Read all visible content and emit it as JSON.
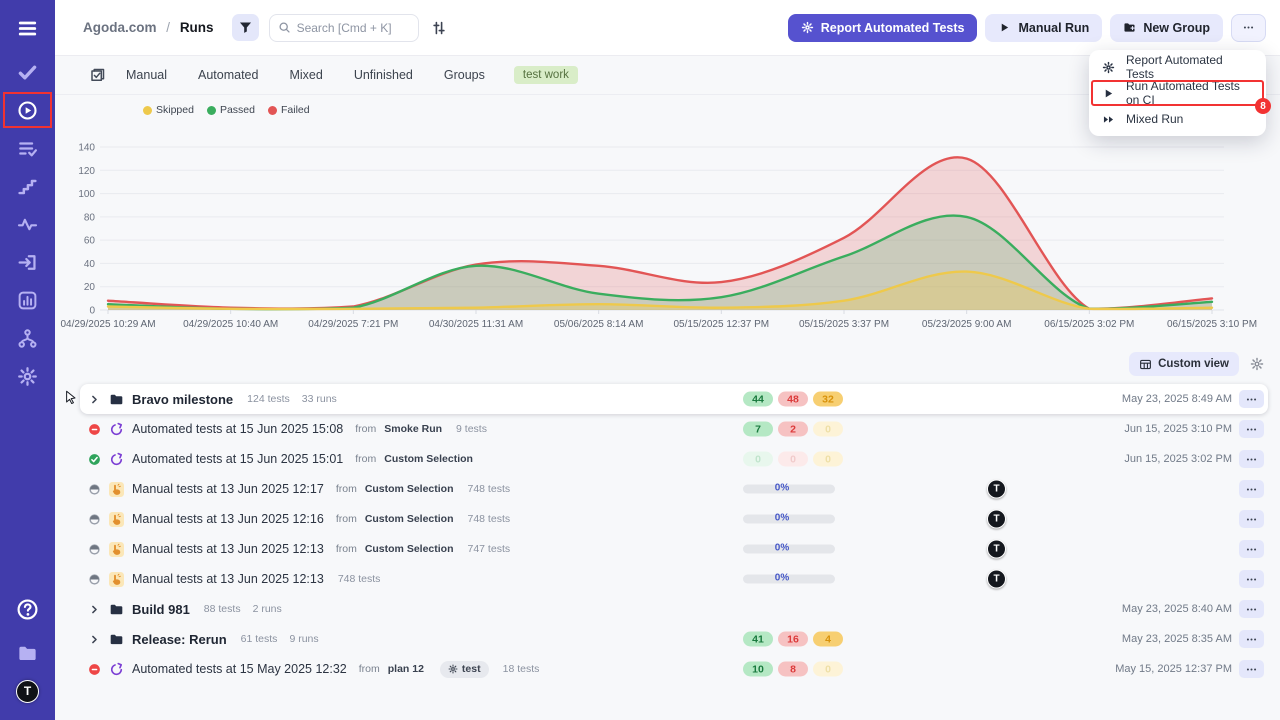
{
  "colors": {
    "sidebar_bg": "#413cab",
    "accent": "#5652cf",
    "highlight_red": "#f23232",
    "page_bg": "#f7f8fa",
    "passed": "#3aad5e",
    "failed": "#e25555",
    "skipped": "#eec94b"
  },
  "labels": {
    "from": "from"
  },
  "sidebar": {
    "top": [
      {
        "name": "menu",
        "icon": "hamburger"
      },
      {
        "name": "tests",
        "icon": "check"
      },
      {
        "name": "runs",
        "icon": "play-circle",
        "selected": true,
        "boxed": true
      },
      {
        "name": "plans",
        "icon": "list-check"
      },
      {
        "name": "milestones",
        "icon": "steps"
      },
      {
        "name": "pulse",
        "icon": "activity"
      },
      {
        "name": "imports",
        "icon": "import"
      },
      {
        "name": "analytics",
        "icon": "bar-square"
      },
      {
        "name": "branches",
        "icon": "branch"
      },
      {
        "name": "settings",
        "icon": "gear"
      }
    ],
    "bottom": [
      {
        "name": "help",
        "icon": "help-circle"
      },
      {
        "name": "projects",
        "icon": "folder"
      },
      {
        "name": "logo",
        "icon": "logo-t",
        "label": "T"
      }
    ]
  },
  "header": {
    "breadcrumb": {
      "project": "Agoda.com",
      "separator": "/",
      "page": "Runs"
    },
    "search_placeholder": "Search [Cmd + K]",
    "actions": [
      {
        "label": "Report Automated Tests",
        "icon": "cog",
        "style": "primary",
        "name": "report-automated-tests-button"
      },
      {
        "label": "Manual Run",
        "icon": "play",
        "style": "light",
        "name": "manual-run-button"
      },
      {
        "label": "New Group",
        "icon": "folder-plus",
        "style": "light",
        "name": "new-group-button"
      },
      {
        "label": "",
        "icon": "dots",
        "style": "outline",
        "name": "more-actions-button"
      }
    ]
  },
  "dropdown": {
    "items": [
      {
        "label": "Report Automated Tests",
        "icon": "cog"
      },
      {
        "label": "Run Automated Tests on CI",
        "icon": "play",
        "highlighted": true,
        "badge": "8"
      },
      {
        "label": "Mixed Run",
        "icon": "fast-forward"
      }
    ]
  },
  "tabs": {
    "items": [
      "Manual",
      "Automated",
      "Mixed",
      "Unfinished",
      "Groups"
    ],
    "tag": "test work"
  },
  "legend": [
    {
      "label": "Skipped",
      "color": "#eec94b"
    },
    {
      "label": "Passed",
      "color": "#3aad5e"
    },
    {
      "label": "Failed",
      "color": "#e25555"
    }
  ],
  "chart_data": {
    "type": "area",
    "x_labels": [
      "04/29/2025 10:29 AM",
      "04/29/2025 10:40 AM",
      "04/29/2025 7:21 PM",
      "04/30/2025 11:31 AM",
      "05/06/2025 8:14 AM",
      "05/15/2025 12:37 PM",
      "05/15/2025 3:37 PM",
      "05/23/2025 9:00 AM",
      "06/15/2025 3:02 PM",
      "06/15/2025 3:10 PM"
    ],
    "series": [
      {
        "name": "Failed",
        "color": "#e25555",
        "values": [
          8,
          2,
          3,
          39,
          38,
          24,
          62,
          130,
          1,
          10
        ]
      },
      {
        "name": "Passed",
        "color": "#3aad5e",
        "values": [
          5,
          1,
          2,
          38,
          14,
          11,
          46,
          80,
          1,
          7
        ]
      },
      {
        "name": "Skipped",
        "color": "#eec94b",
        "values": [
          3,
          1,
          1,
          2,
          5,
          2,
          8,
          33,
          1,
          2
        ]
      }
    ],
    "ylim": [
      0,
      140
    ],
    "yticks": [
      0,
      20,
      40,
      60,
      80,
      100,
      120,
      140
    ],
    "grid": true,
    "legend_position": "top-left"
  },
  "view_bar": {
    "custom_view": "Custom view"
  },
  "rows": [
    {
      "kind": "group",
      "cursor": true,
      "elevated": true,
      "title": "Bravo milestone",
      "meta": [
        "124 tests",
        "33 runs"
      ],
      "badges": [
        {
          "value": "44",
          "type": "passed"
        },
        {
          "value": "48",
          "type": "failed"
        },
        {
          "value": "32",
          "type": "skipped"
        }
      ],
      "date": "May 23, 2025 8:49 AM"
    },
    {
      "kind": "run",
      "status": "failed",
      "icon": "automated",
      "title": "Automated tests at 15 Jun 2025 15:08",
      "from": "Smoke Run",
      "meta": [
        "9 tests"
      ],
      "badges": [
        {
          "value": "7",
          "type": "passed"
        },
        {
          "value": "2",
          "type": "failed"
        },
        {
          "value": "0",
          "type": "skipped",
          "muted": true
        }
      ],
      "date": "Jun 15, 2025 3:10 PM"
    },
    {
      "kind": "run",
      "status": "passed",
      "icon": "automated",
      "title": "Automated tests at 15 Jun 2025 15:01",
      "from": "Custom Selection",
      "meta": [],
      "badges": [
        {
          "value": "0",
          "type": "passed",
          "muted": true
        },
        {
          "value": "0",
          "type": "failed",
          "muted": true
        },
        {
          "value": "0",
          "type": "skipped",
          "muted": true
        }
      ],
      "date": "Jun 15, 2025 3:02 PM"
    },
    {
      "kind": "run",
      "status": "pending",
      "icon": "manual",
      "title": "Manual tests at 13 Jun 2025 12:17",
      "from": "Custom Selection",
      "meta": [
        "748 tests"
      ],
      "progress": "0%",
      "avatar": "T"
    },
    {
      "kind": "run",
      "status": "pending",
      "icon": "manual",
      "title": "Manual tests at 13 Jun 2025 12:16",
      "from": "Custom Selection",
      "meta": [
        "748 tests"
      ],
      "progress": "0%",
      "avatar": "T"
    },
    {
      "kind": "run",
      "status": "pending",
      "icon": "manual",
      "title": "Manual tests at 13 Jun 2025 12:13",
      "from": "Custom Selection",
      "meta": [
        "747 tests"
      ],
      "progress": "0%",
      "avatar": "T"
    },
    {
      "kind": "run",
      "status": "pending",
      "icon": "manual",
      "title": "Manual tests at 13 Jun 2025 12:13",
      "meta": [
        "748 tests"
      ],
      "progress": "0%",
      "avatar": "T"
    },
    {
      "kind": "group",
      "title": "Build 981",
      "meta": [
        "88 tests",
        "2 runs"
      ],
      "badges": [],
      "date": "May 23, 2025 8:40 AM"
    },
    {
      "kind": "group",
      "title": "Release: Rerun",
      "meta": [
        "61 tests",
        "9 runs"
      ],
      "badges": [
        {
          "value": "41",
          "type": "passed"
        },
        {
          "value": "16",
          "type": "failed"
        },
        {
          "value": "4",
          "type": "skipped"
        }
      ],
      "date": "May 23, 2025 8:35 AM"
    },
    {
      "kind": "run",
      "status": "failed",
      "icon": "automated",
      "title": "Automated tests at 15 May 2025 12:32",
      "from": "plan 12",
      "tag": "test",
      "meta": [
        "18 tests"
      ],
      "badges": [
        {
          "value": "10",
          "type": "passed"
        },
        {
          "value": "8",
          "type": "failed"
        },
        {
          "value": "0",
          "type": "skipped",
          "muted": true
        }
      ],
      "date": "May 15, 2025 12:37 PM"
    }
  ]
}
